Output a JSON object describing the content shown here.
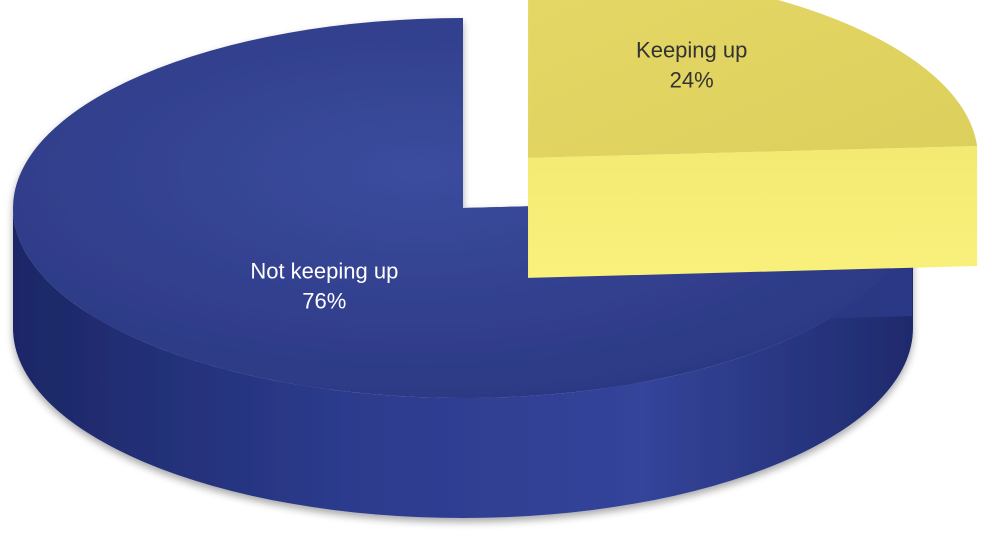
{
  "chart_data": {
    "type": "pie",
    "style": "3d-exploded",
    "legend": "none",
    "slices": [
      {
        "id": "not-keeping-up",
        "label": "Not keeping up",
        "value": 76,
        "value_label": "76%",
        "color": "#2f3d8c",
        "label_color": "#ffffff"
      },
      {
        "id": "keeping-up",
        "label": "Keeping up",
        "value": 24,
        "value_label": "24%",
        "color": "#f2e66a",
        "label_color": "#333333"
      }
    ]
  }
}
